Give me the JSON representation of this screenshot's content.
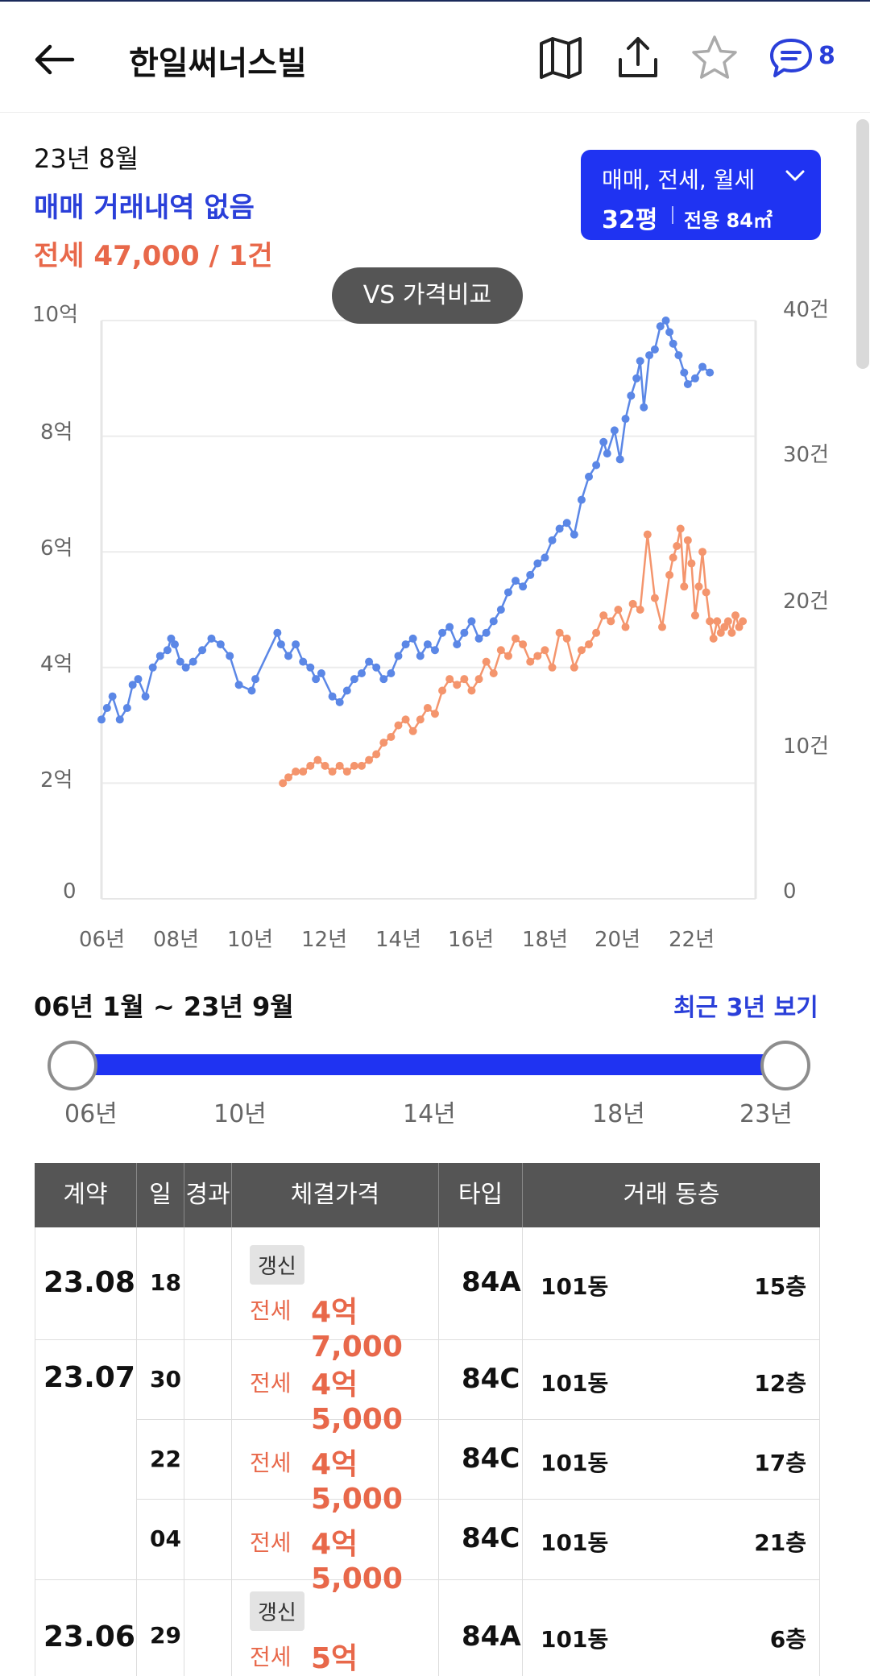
{
  "header": {
    "title": "한일써너스빌",
    "chat_count": "8",
    "icons": [
      "back-arrow-icon",
      "map-icon",
      "share-icon",
      "star-icon",
      "chat-icon"
    ]
  },
  "summary": {
    "date": "23년 8월",
    "sale_text": "매매 거래내역 없음",
    "rent_prefix": "전세 ",
    "rent_value": "47,000 / 1건"
  },
  "filter": {
    "types": "매매, 전세, 월세",
    "pyeong": "32평",
    "area": "전용 84㎡"
  },
  "vs_button": "VS 가격비교",
  "chart_data": {
    "type": "line",
    "y_left_ticks": [
      "10억",
      "8억",
      "6억",
      "4억",
      "2억",
      "0"
    ],
    "y_right_ticks": [
      "40건",
      "30건",
      "20건",
      "10건",
      "0"
    ],
    "x_ticks": [
      "06년",
      "08년",
      "10년",
      "12년",
      "14년",
      "16년",
      "18년",
      "20년",
      "22년"
    ],
    "ylim_left": [
      0,
      10
    ],
    "ylim_right": [
      0,
      40
    ],
    "y_unit_left": "억",
    "y_unit_right": "건",
    "series": [
      {
        "color": "#5b87e6",
        "x": [
          2006.0,
          2006.15,
          2006.3,
          2006.5,
          2006.7,
          2006.85,
          2007.0,
          2007.2,
          2007.4,
          2007.6,
          2007.8,
          2007.9,
          2008.0,
          2008.15,
          2008.3,
          2008.5,
          2008.75,
          2009.0,
          2009.25,
          2009.5,
          2009.75,
          2010.1,
          2010.2,
          2010.8,
          2010.9,
          2011.1,
          2011.3,
          2011.5,
          2011.7,
          2011.85,
          2012.0,
          2012.3,
          2012.5,
          2012.7,
          2012.9,
          2013.1,
          2013.3,
          2013.5,
          2013.7,
          2013.9,
          2014.1,
          2014.3,
          2014.5,
          2014.7,
          2014.9,
          2015.1,
          2015.3,
          2015.5,
          2015.7,
          2015.9,
          2016.1,
          2016.3,
          2016.5,
          2016.7,
          2016.9,
          2017.1,
          2017.3,
          2017.5,
          2017.7,
          2017.9,
          2018.1,
          2018.3,
          2018.5,
          2018.7,
          2018.9,
          2019.1,
          2019.3,
          2019.5,
          2019.7,
          2019.8,
          2020.0,
          2020.15,
          2020.3,
          2020.45,
          2020.6,
          2020.7,
          2020.8,
          2020.95,
          2021.1,
          2021.25,
          2021.4,
          2021.5,
          2021.6,
          2021.75,
          2021.9,
          2022.0,
          2022.2,
          2022.4,
          2022.6
        ],
        "y": [
          3.1,
          3.3,
          3.5,
          3.1,
          3.3,
          3.7,
          3.8,
          3.5,
          4.0,
          4.2,
          4.3,
          4.5,
          4.4,
          4.1,
          4.0,
          4.1,
          4.3,
          4.5,
          4.4,
          4.2,
          3.7,
          3.6,
          3.8,
          4.6,
          4.4,
          4.2,
          4.4,
          4.1,
          4.0,
          3.8,
          3.9,
          3.5,
          3.4,
          3.6,
          3.8,
          3.9,
          4.1,
          4.0,
          3.8,
          3.9,
          4.2,
          4.4,
          4.5,
          4.2,
          4.4,
          4.3,
          4.6,
          4.7,
          4.4,
          4.6,
          4.8,
          4.5,
          4.6,
          4.8,
          5.0,
          5.3,
          5.5,
          5.4,
          5.6,
          5.8,
          5.9,
          6.2,
          6.4,
          6.5,
          6.3,
          6.9,
          7.3,
          7.5,
          7.9,
          7.7,
          8.1,
          7.6,
          8.3,
          8.7,
          9.0,
          9.3,
          8.5,
          9.4,
          9.5,
          9.9,
          10.0,
          9.8,
          9.6,
          9.4,
          9.1,
          8.9,
          9.0,
          9.2,
          9.1
        ]
      },
      {
        "color": "#f4956d",
        "x": [
          2010.95,
          2011.1,
          2011.3,
          2011.5,
          2011.7,
          2011.9,
          2012.1,
          2012.3,
          2012.5,
          2012.7,
          2012.9,
          2013.1,
          2013.3,
          2013.5,
          2013.7,
          2013.9,
          2014.1,
          2014.3,
          2014.5,
          2014.7,
          2014.9,
          2015.1,
          2015.3,
          2015.5,
          2015.7,
          2015.9,
          2016.1,
          2016.3,
          2016.5,
          2016.7,
          2016.9,
          2017.1,
          2017.3,
          2017.5,
          2017.7,
          2017.9,
          2018.1,
          2018.3,
          2018.5,
          2018.7,
          2018.9,
          2019.1,
          2019.3,
          2019.5,
          2019.7,
          2019.9,
          2020.1,
          2020.3,
          2020.5,
          2020.7,
          2020.9,
          2021.1,
          2021.3,
          2021.5,
          2021.6,
          2021.7,
          2021.8,
          2021.9,
          2022.0,
          2022.1,
          2022.2,
          2022.3,
          2022.4,
          2022.5,
          2022.6,
          2022.7,
          2022.8,
          2022.9,
          2023.0,
          2023.1,
          2023.2,
          2023.3,
          2023.4,
          2023.5
        ],
        "y": [
          2.0,
          2.1,
          2.2,
          2.2,
          2.3,
          2.4,
          2.3,
          2.2,
          2.3,
          2.2,
          2.3,
          2.3,
          2.4,
          2.5,
          2.7,
          2.8,
          3.0,
          3.1,
          2.9,
          3.1,
          3.3,
          3.2,
          3.6,
          3.8,
          3.7,
          3.8,
          3.6,
          3.8,
          4.1,
          3.9,
          4.3,
          4.2,
          4.5,
          4.4,
          4.1,
          4.2,
          4.3,
          4.0,
          4.6,
          4.5,
          4.0,
          4.3,
          4.4,
          4.6,
          4.9,
          4.8,
          5.0,
          4.7,
          5.1,
          5.0,
          6.3,
          5.2,
          4.7,
          5.6,
          5.9,
          6.1,
          6.4,
          5.4,
          6.2,
          5.8,
          4.9,
          5.4,
          6.0,
          5.3,
          4.8,
          4.5,
          4.8,
          4.6,
          4.7,
          4.8,
          4.6,
          4.9,
          4.7,
          4.8
        ]
      }
    ],
    "grid": true
  },
  "range": {
    "label": "06년 1월 ~ 23년 9월",
    "recent_link": "최근 3년 보기",
    "ticks": [
      "06년",
      "10년",
      "14년",
      "18년",
      "23년"
    ]
  },
  "table": {
    "headers": [
      "계약",
      "일",
      "경과",
      "체결가격",
      "타입",
      "거래 동층"
    ],
    "groups": [
      {
        "month": "23.08",
        "rows": [
          {
            "day": "18",
            "badge": "갱신",
            "ptype": "전세",
            "price": "4억 7,000",
            "type": "84A",
            "dong": "101동",
            "floor": "15층"
          }
        ]
      },
      {
        "month": "23.07",
        "rows": [
          {
            "day": "30",
            "badge": "",
            "ptype": "전세",
            "price": "4억 5,000",
            "type": "84C",
            "dong": "101동",
            "floor": "12층"
          },
          {
            "day": "22",
            "badge": "",
            "ptype": "전세",
            "price": "4억 5,000",
            "type": "84C",
            "dong": "101동",
            "floor": "17층"
          },
          {
            "day": "04",
            "badge": "",
            "ptype": "전세",
            "price": "4억 5,000",
            "type": "84C",
            "dong": "101동",
            "floor": "21층"
          }
        ]
      },
      {
        "month": "23.06",
        "rows": [
          {
            "day": "29",
            "badge": "갱신",
            "ptype": "전세",
            "price": "5억",
            "type": "84A",
            "dong": "101동",
            "floor": "6층"
          }
        ]
      }
    ]
  },
  "colors": {
    "accent_blue": "#1f33f2",
    "text_blue": "#2a3fd9",
    "rent_orange": "#e8684a",
    "header_gray": "#555555"
  }
}
